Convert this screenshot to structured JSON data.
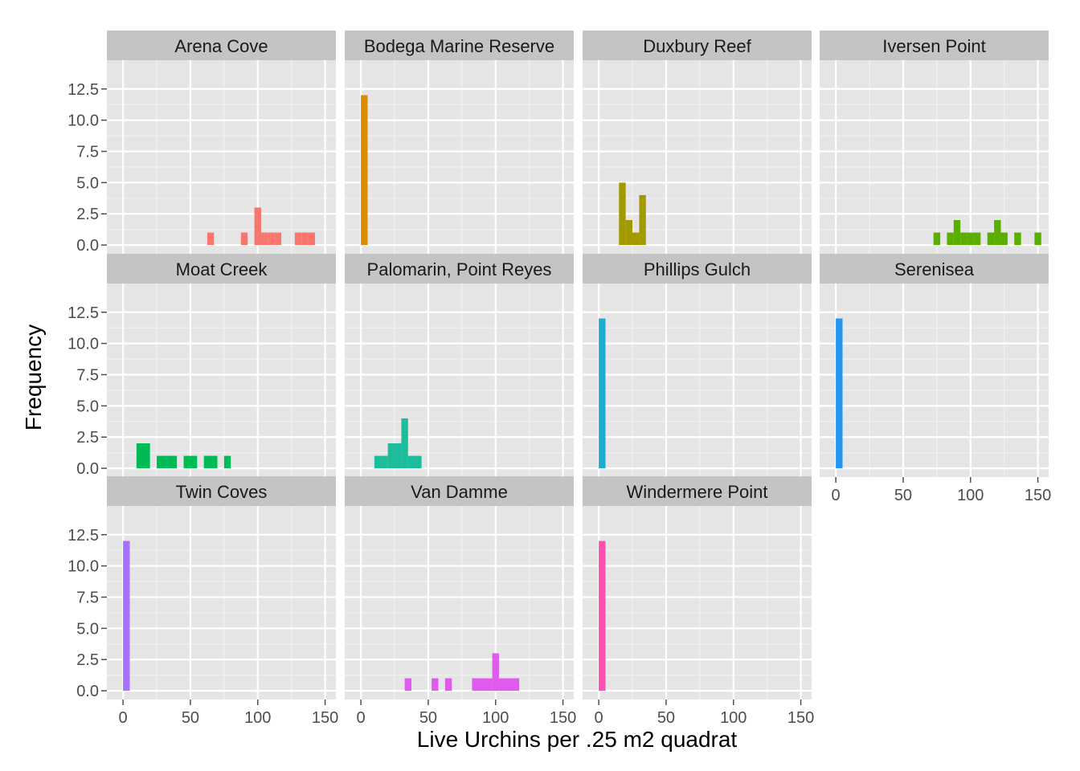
{
  "chart_data": {
    "type": "bar",
    "subtype": "faceted-histogram",
    "xlabel": "Live Urchins per .25 m2 quadrat",
    "ylabel": "Frequency",
    "xlim": [
      -12,
      158
    ],
    "ylim": [
      -0.7,
      14.8
    ],
    "x_ticks": [
      0,
      50,
      100,
      150
    ],
    "x_tick_labels": [
      "0",
      "50",
      "100",
      "150"
    ],
    "y_ticks": [
      0,
      2.5,
      5,
      7.5,
      10,
      12.5
    ],
    "y_tick_labels": [
      "0.0",
      "2.5",
      "5.0",
      "7.5",
      "10.0",
      "12.5"
    ],
    "bin_width": 5,
    "facet_rows": 3,
    "facet_cols": 4,
    "grid": true,
    "legend": "none",
    "facets": [
      {
        "name": "Arena Cove",
        "color": "#F8766D",
        "bins": [
          [
            62.5,
            67.5,
            1
          ],
          [
            87.5,
            92.5,
            1
          ],
          [
            97.5,
            102.5,
            3
          ],
          [
            102.5,
            107.5,
            1
          ],
          [
            107.5,
            112.5,
            1
          ],
          [
            112.5,
            117.5,
            1
          ],
          [
            127.5,
            132.5,
            1
          ],
          [
            132.5,
            137.5,
            1
          ],
          [
            137.5,
            142.5,
            1
          ]
        ]
      },
      {
        "name": "Bodega Marine Reserve",
        "color": "#D98C00",
        "bins": [
          [
            0,
            5,
            12
          ]
        ]
      },
      {
        "name": "Duxbury Reef",
        "color": "#A39A00",
        "bins": [
          [
            15,
            20,
            5
          ],
          [
            20,
            25,
            2
          ],
          [
            25,
            30,
            1
          ],
          [
            30,
            35,
            4
          ]
        ]
      },
      {
        "name": "Iversen Point",
        "color": "#5BAE00",
        "bins": [
          [
            72.5,
            77.5,
            1
          ],
          [
            82.5,
            87.5,
            1
          ],
          [
            87.5,
            92.5,
            2
          ],
          [
            92.5,
            97.5,
            1
          ],
          [
            97.5,
            102.5,
            1
          ],
          [
            102.5,
            107.5,
            1
          ],
          [
            112.5,
            117.5,
            1
          ],
          [
            117.5,
            122.5,
            2
          ],
          [
            122.5,
            127.5,
            1
          ],
          [
            132.5,
            137.5,
            1
          ],
          [
            147.5,
            152.5,
            1
          ]
        ]
      },
      {
        "name": "Moat Creek",
        "color": "#00BB55",
        "bins": [
          [
            10,
            20,
            2
          ],
          [
            25,
            40,
            1
          ],
          [
            45,
            55,
            1
          ],
          [
            60,
            70,
            1
          ],
          [
            75,
            80,
            1
          ]
        ]
      },
      {
        "name": "Palomarin, Point Reyes",
        "color": "#1DBD9B",
        "bins": [
          [
            10,
            20,
            1
          ],
          [
            20,
            30,
            2
          ],
          [
            30,
            35,
            4
          ],
          [
            35,
            45,
            1
          ]
        ]
      },
      {
        "name": "Phillips Gulch",
        "color": "#1BADD3",
        "bins": [
          [
            0,
            5,
            12
          ]
        ]
      },
      {
        "name": "Serenisea",
        "color": "#2396F3",
        "bins": [
          [
            0,
            5,
            12
          ]
        ]
      },
      {
        "name": "Twin Coves",
        "color": "#A770FF",
        "bins": [
          [
            0,
            5,
            12
          ]
        ]
      },
      {
        "name": "Van Damme",
        "color": "#E15AEF",
        "bins": [
          [
            32.5,
            37.5,
            1
          ],
          [
            52.5,
            57.5,
            1
          ],
          [
            62.5,
            67.5,
            1
          ],
          [
            82.5,
            97.5,
            1
          ],
          [
            97.5,
            102.5,
            3
          ],
          [
            102.5,
            117.5,
            1
          ]
        ]
      },
      {
        "name": "Windermere Point",
        "color": "#FF4FB0",
        "bins": [
          [
            0,
            5,
            12
          ]
        ]
      }
    ]
  }
}
